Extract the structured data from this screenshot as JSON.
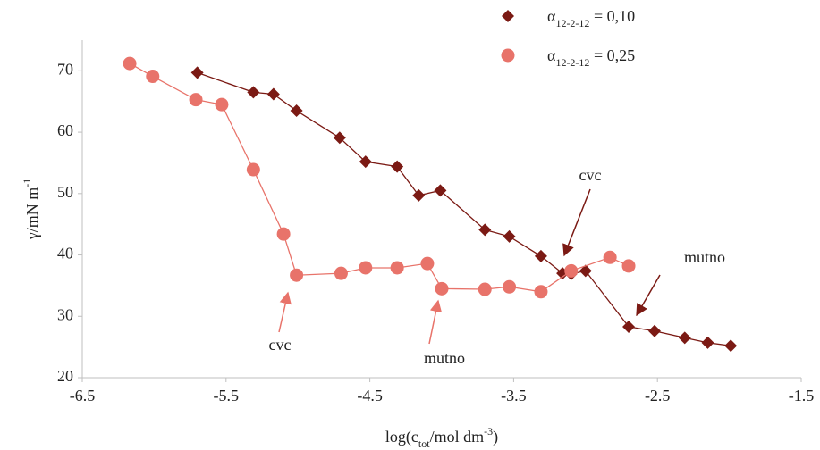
{
  "chart_data": {
    "type": "scatter-line",
    "x_label": "log(ctot/mol dm-3)",
    "y_label": "γ/mN m-1",
    "xlim": [
      -6.5,
      -1.5
    ],
    "xticks": [
      -6.5,
      -5.5,
      -4.5,
      -3.5,
      -2.5,
      -1.5
    ],
    "ylim": [
      20,
      75
    ],
    "yticks": [
      20,
      30,
      40,
      50,
      60,
      70
    ],
    "grid": false,
    "legend": "top-right",
    "series": [
      {
        "name": "α12-2-12 = 0,10",
        "color": "#7b1a14",
        "marker": "diamond",
        "x": [
          -5.7,
          -5.31,
          -5.17,
          -5.01,
          -4.71,
          -4.53,
          -4.31,
          -4.16,
          -4.01,
          -3.7,
          -3.53,
          -3.31,
          -3.16,
          -3.1,
          -3.0,
          -2.7,
          -2.52,
          -2.31,
          -2.15,
          -1.99
        ],
        "values": [
          69.7,
          66.5,
          66.2,
          63.5,
          59.1,
          55.2,
          54.4,
          49.7,
          50.5,
          44.1,
          43.0,
          39.8,
          37.0,
          36.9,
          37.4,
          28.3,
          27.6,
          26.5,
          25.7,
          25.2
        ]
      },
      {
        "name": "α12-2-12 = 0,25",
        "color": "#e8736a",
        "marker": "circle",
        "x": [
          -6.17,
          -6.01,
          -5.71,
          -5.53,
          -5.31,
          -5.1,
          -5.01,
          -4.7,
          -4.53,
          -4.31,
          -4.1,
          -4.0,
          -3.7,
          -3.53,
          -3.31,
          -3.1,
          -2.83,
          -2.7
        ],
        "values": [
          71.2,
          69.1,
          65.3,
          64.5,
          53.9,
          43.4,
          36.7,
          37.0,
          37.9,
          37.9,
          38.6,
          34.5,
          34.4,
          34.8,
          34.0,
          37.4,
          39.6,
          38.2
        ]
      }
    ],
    "annotations": [
      "cvc",
      "mutno",
      "cvc",
      "mutno"
    ]
  }
}
